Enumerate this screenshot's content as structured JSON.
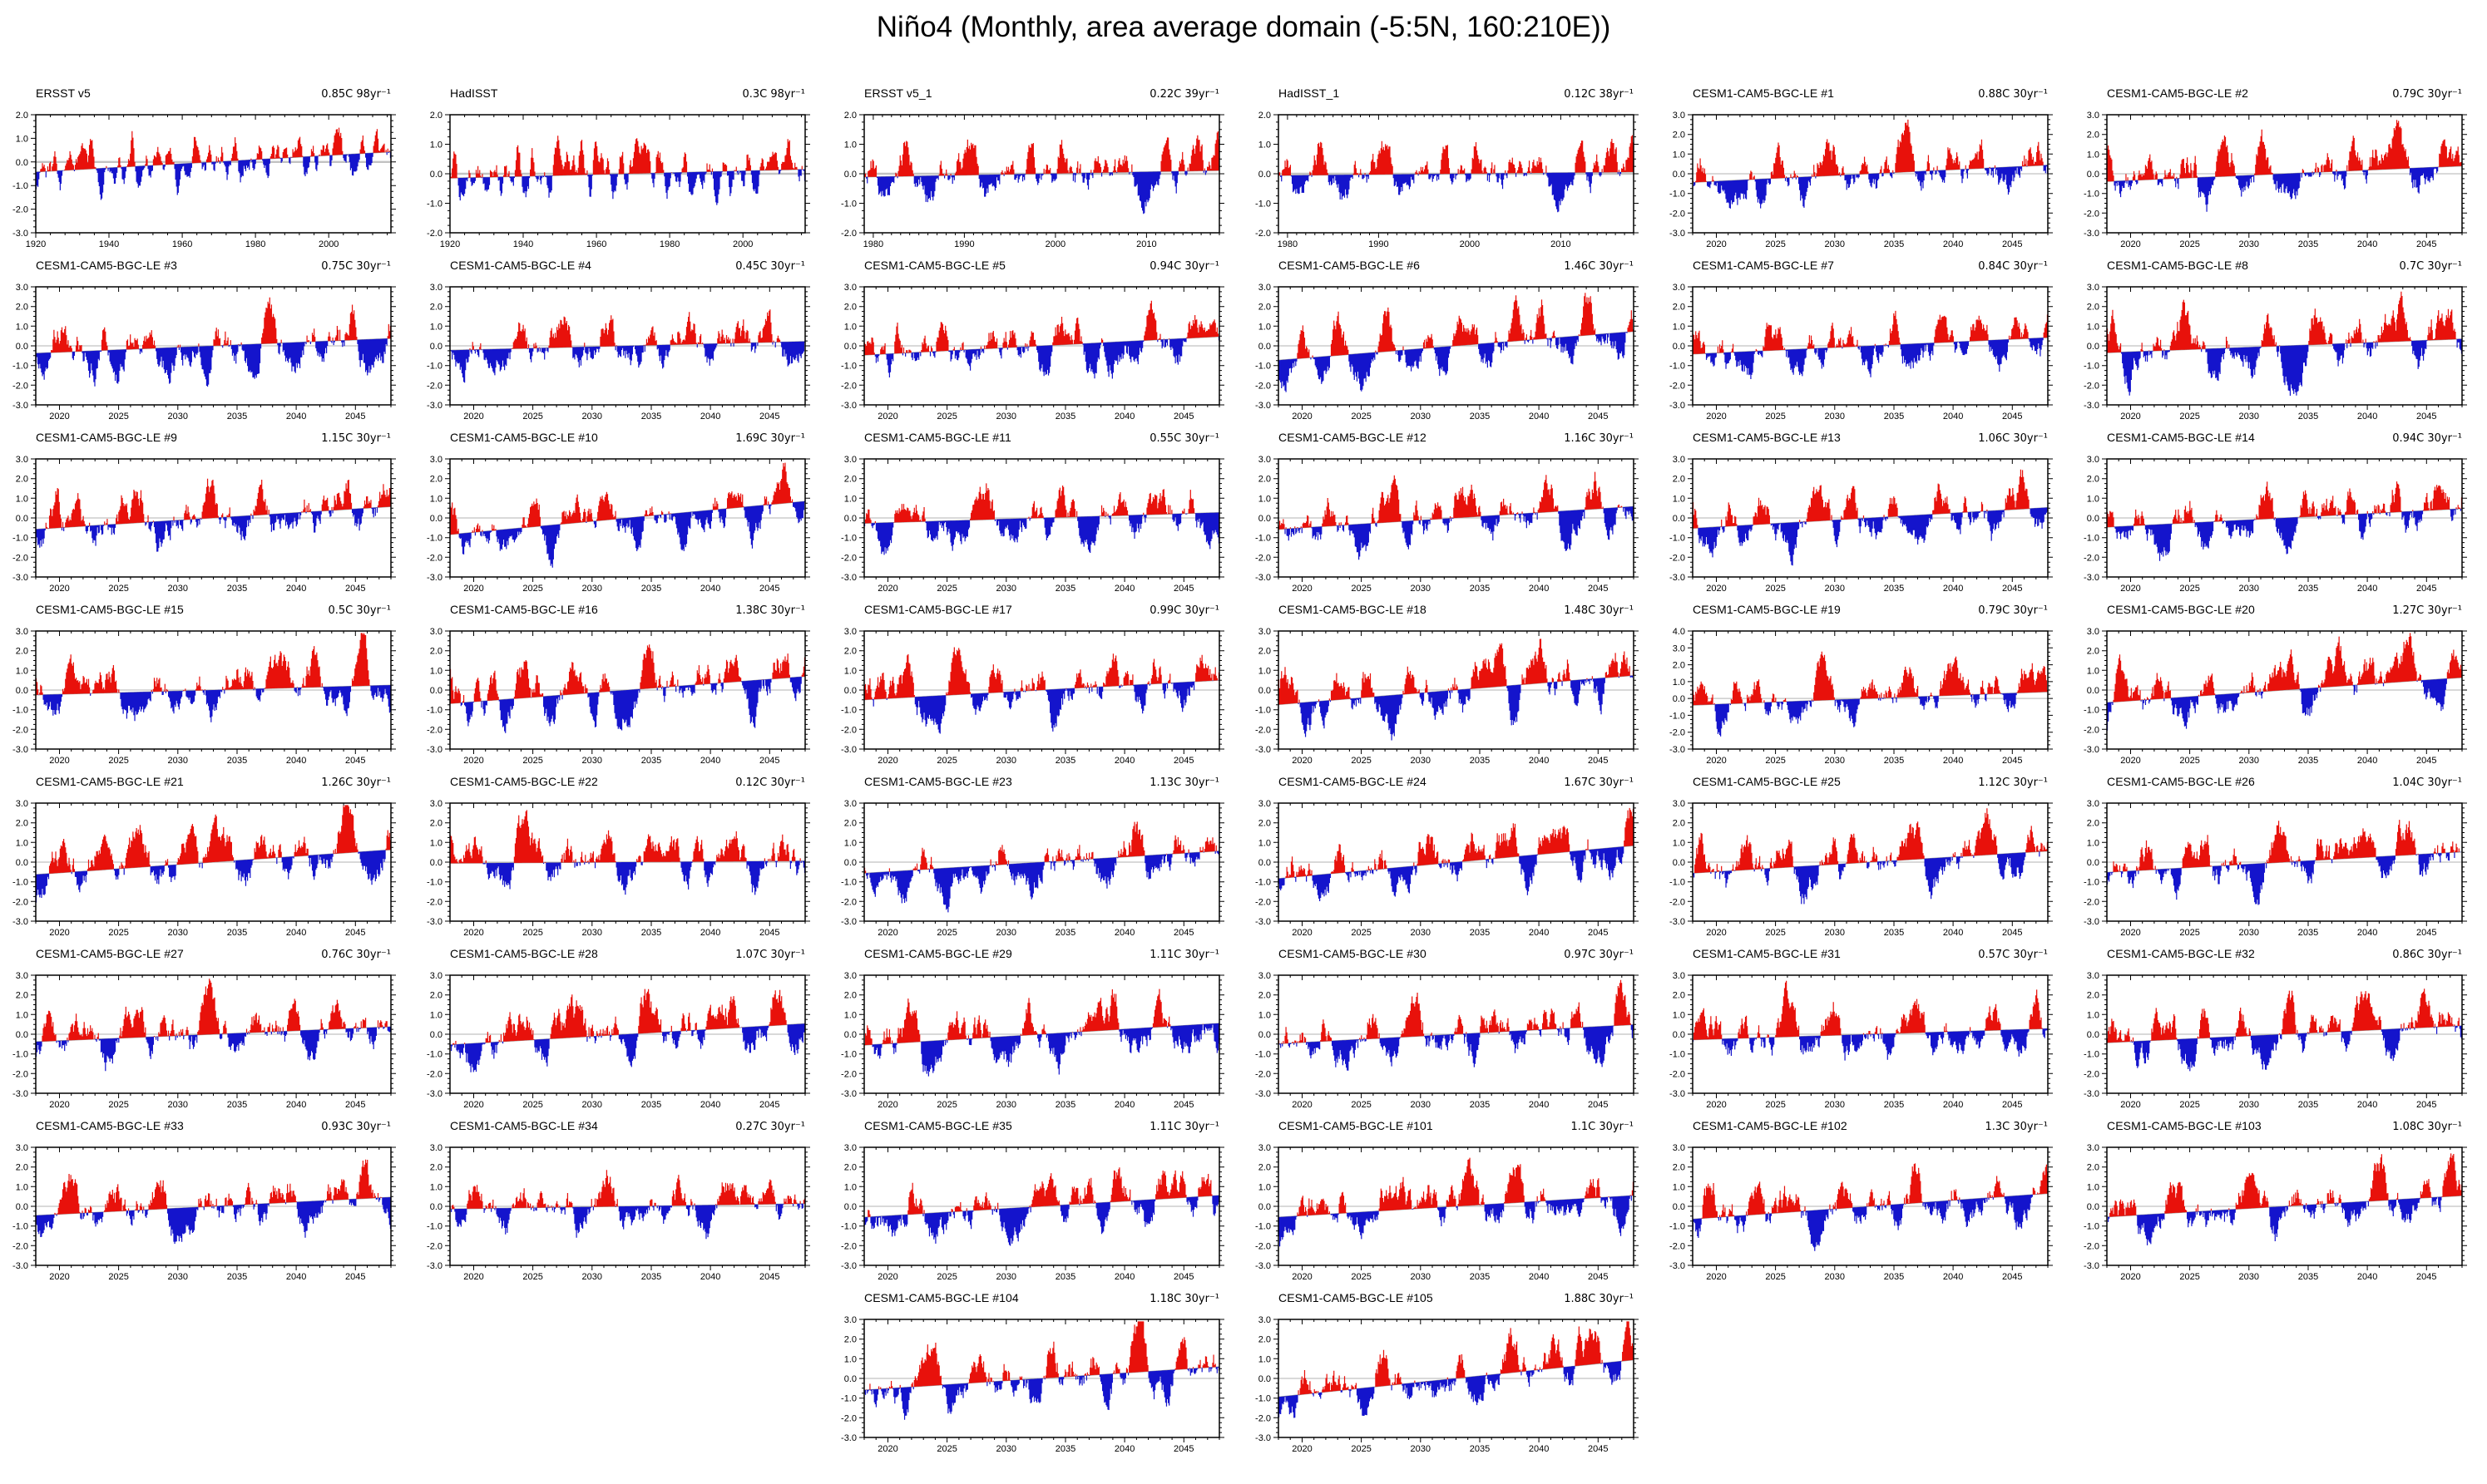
{
  "title": "Niño4 (Monthly, area average domain (-5:5N, 160:210E))",
  "chart_data": {
    "type": "area",
    "description": "44 small-multiple panels of monthly Niño4 SST anomaly time series; anomalies are filled red above the linear trend baseline and blue below it; a thin gray line marks 0.0; each panel header gives the dataset / ensemble member name (left) and its linear trend (right).",
    "colors": {
      "red": "#e8110b",
      "blue": "#1414cc",
      "zero_line": "#c2c2c2",
      "trend_line": "#9a9a9a",
      "axis": "#000000"
    },
    "value_unit": "C",
    "legend": "red = anomaly above trend line, blue = anomaly below trend line",
    "axes": {
      "obs98": {
        "x_start": 1920,
        "x_end": 2017,
        "x_majors": [
          1920,
          1940,
          1960,
          1980,
          2000
        ],
        "x_minor_step": 4
      },
      "obs39": {
        "x_start": 1979,
        "x_end": 2018,
        "x_majors": [
          1980,
          1990,
          2000,
          2010
        ],
        "x_minor_step": 1
      },
      "cesm30": {
        "x_start": 2018,
        "x_end": 2048,
        "x_majors": [
          2020,
          2025,
          2030,
          2035,
          2040,
          2045
        ],
        "x_minor_step": 1
      }
    },
    "y_major_step": 1.0,
    "y_minor_step": 0.25,
    "panels": [
      {
        "title": "ERSST v5",
        "trend_label": "0.85C 98yr⁻¹",
        "trend_c": 0.85,
        "axis": "obs98",
        "ylim": [
          -3,
          2
        ],
        "amp": 0.62,
        "seed": 3
      },
      {
        "title": "HadISST",
        "trend_label": "0.3C 98yr⁻¹",
        "trend_c": 0.3,
        "axis": "obs98",
        "ylim": [
          -2,
          2
        ],
        "amp": 0.55,
        "seed": 5
      },
      {
        "title": "ERSST v5_1",
        "trend_label": "0.22C 39yr⁻¹",
        "trend_c": 0.22,
        "axis": "obs39",
        "ylim": [
          -2,
          2
        ],
        "amp": 0.66,
        "seed": 8
      },
      {
        "title": "HadISST_1",
        "trend_label": "0.12C 38yr⁻¹",
        "trend_c": 0.12,
        "axis": "obs39",
        "ylim": [
          -2,
          2
        ],
        "amp": 0.62,
        "seed": 8
      },
      {
        "title": "CESM1-CAM5-BGC-LE #1",
        "trend_label": "0.88C 30yr⁻¹",
        "trend_c": 0.88,
        "axis": "cesm30",
        "ylim": [
          -3,
          3
        ],
        "amp": 1.0,
        "seed": 11
      },
      {
        "title": "CESM1-CAM5-BGC-LE #2",
        "trend_label": "0.79C 30yr⁻¹",
        "trend_c": 0.79,
        "axis": "cesm30",
        "ylim": [
          -3,
          3
        ],
        "amp": 1.0,
        "seed": 12
      },
      {
        "title": "CESM1-CAM5-BGC-LE #3",
        "trend_label": "0.75C 30yr⁻¹",
        "trend_c": 0.75,
        "axis": "cesm30",
        "ylim": [
          -3,
          3
        ],
        "amp": 1.05,
        "seed": 13
      },
      {
        "title": "CESM1-CAM5-BGC-LE #4",
        "trend_label": "0.45C 30yr⁻¹",
        "trend_c": 0.45,
        "axis": "cesm30",
        "ylim": [
          -3,
          3
        ],
        "amp": 0.95,
        "seed": 14
      },
      {
        "title": "CESM1-CAM5-BGC-LE #5",
        "trend_label": "0.94C 30yr⁻¹",
        "trend_c": 0.94,
        "axis": "cesm30",
        "ylim": [
          -3,
          3
        ],
        "amp": 1.0,
        "seed": 15
      },
      {
        "title": "CESM1-CAM5-BGC-LE #6",
        "trend_label": "1.46C 30yr⁻¹",
        "trend_c": 1.46,
        "axis": "cesm30",
        "ylim": [
          -3,
          3
        ],
        "amp": 1.0,
        "seed": 16
      },
      {
        "title": "CESM1-CAM5-BGC-LE #7",
        "trend_label": "0.84C 30yr⁻¹",
        "trend_c": 0.84,
        "axis": "cesm30",
        "ylim": [
          -3,
          3
        ],
        "amp": 0.95,
        "seed": 17
      },
      {
        "title": "CESM1-CAM5-BGC-LE #8",
        "trend_label": "0.7C 30yr⁻¹",
        "trend_c": 0.7,
        "axis": "cesm30",
        "ylim": [
          -3,
          3
        ],
        "amp": 1.05,
        "seed": 18
      },
      {
        "title": "CESM1-CAM5-BGC-LE #9",
        "trend_label": "1.15C 30yr⁻¹",
        "trend_c": 1.15,
        "axis": "cesm30",
        "ylim": [
          -3,
          3
        ],
        "amp": 1.05,
        "seed": 19
      },
      {
        "title": "CESM1-CAM5-BGC-LE #10",
        "trend_label": "1.69C 30yr⁻¹",
        "trend_c": 1.69,
        "axis": "cesm30",
        "ylim": [
          -3,
          3
        ],
        "amp": 0.95,
        "seed": 20
      },
      {
        "title": "CESM1-CAM5-BGC-LE #11",
        "trend_label": "0.55C 30yr⁻¹",
        "trend_c": 0.55,
        "axis": "cesm30",
        "ylim": [
          -3,
          3
        ],
        "amp": 0.95,
        "seed": 21
      },
      {
        "title": "CESM1-CAM5-BGC-LE #12",
        "trend_label": "1.16C 30yr⁻¹",
        "trend_c": 1.16,
        "axis": "cesm30",
        "ylim": [
          -3,
          3
        ],
        "amp": 1.0,
        "seed": 22
      },
      {
        "title": "CESM1-CAM5-BGC-LE #13",
        "trend_label": "1.06C 30yr⁻¹",
        "trend_c": 1.06,
        "axis": "cesm30",
        "ylim": [
          -3,
          3
        ],
        "amp": 1.0,
        "seed": 23
      },
      {
        "title": "CESM1-CAM5-BGC-LE #14",
        "trend_label": "0.94C 30yr⁻¹",
        "trend_c": 0.94,
        "axis": "cesm30",
        "ylim": [
          -3,
          3
        ],
        "amp": 1.0,
        "seed": 24
      },
      {
        "title": "CESM1-CAM5-BGC-LE #15",
        "trend_label": "0.5C 30yr⁻¹",
        "trend_c": 0.5,
        "axis": "cesm30",
        "ylim": [
          -3,
          3
        ],
        "amp": 0.95,
        "seed": 25
      },
      {
        "title": "CESM1-CAM5-BGC-LE #16",
        "trend_label": "1.38C 30yr⁻¹",
        "trend_c": 1.38,
        "axis": "cesm30",
        "ylim": [
          -3,
          3
        ],
        "amp": 1.05,
        "seed": 26
      },
      {
        "title": "CESM1-CAM5-BGC-LE #17",
        "trend_label": "0.99C 30yr⁻¹",
        "trend_c": 0.99,
        "axis": "cesm30",
        "ylim": [
          -3,
          3
        ],
        "amp": 1.0,
        "seed": 27
      },
      {
        "title": "CESM1-CAM5-BGC-LE #18",
        "trend_label": "1.48C 30yr⁻¹",
        "trend_c": 1.48,
        "axis": "cesm30",
        "ylim": [
          -3,
          3
        ],
        "amp": 1.05,
        "seed": 28
      },
      {
        "title": "CESM1-CAM5-BGC-LE #19",
        "trend_label": "0.79C 30yr⁻¹",
        "trend_c": 0.79,
        "axis": "cesm30",
        "ylim": [
          -3,
          4
        ],
        "amp": 1.0,
        "seed": 29
      },
      {
        "title": "CESM1-CAM5-BGC-LE #20",
        "trend_label": "1.27C 30yr⁻¹",
        "trend_c": 1.27,
        "axis": "cesm30",
        "ylim": [
          -3,
          3
        ],
        "amp": 1.0,
        "seed": 30
      },
      {
        "title": "CESM1-CAM5-BGC-LE #21",
        "trend_label": "1.26C 30yr⁻¹",
        "trend_c": 1.26,
        "axis": "cesm30",
        "ylim": [
          -3,
          3
        ],
        "amp": 1.0,
        "seed": 31
      },
      {
        "title": "CESM1-CAM5-BGC-LE #22",
        "trend_label": "0.12C 30yr⁻¹",
        "trend_c": 0.12,
        "axis": "cesm30",
        "ylim": [
          -3,
          3
        ],
        "amp": 1.0,
        "seed": 32
      },
      {
        "title": "CESM1-CAM5-BGC-LE #23",
        "trend_label": "1.13C 30yr⁻¹",
        "trend_c": 1.13,
        "axis": "cesm30",
        "ylim": [
          -3,
          3
        ],
        "amp": 1.0,
        "seed": 33
      },
      {
        "title": "CESM1-CAM5-BGC-LE #24",
        "trend_label": "1.67C 30yr⁻¹",
        "trend_c": 1.67,
        "axis": "cesm30",
        "ylim": [
          -3,
          3
        ],
        "amp": 1.0,
        "seed": 34
      },
      {
        "title": "CESM1-CAM5-BGC-LE #25",
        "trend_label": "1.12C 30yr⁻¹",
        "trend_c": 1.12,
        "axis": "cesm30",
        "ylim": [
          -3,
          3
        ],
        "amp": 1.0,
        "seed": 35
      },
      {
        "title": "CESM1-CAM5-BGC-LE #26",
        "trend_label": "1.04C 30yr⁻¹",
        "trend_c": 1.04,
        "axis": "cesm30",
        "ylim": [
          -3,
          3
        ],
        "amp": 1.0,
        "seed": 36
      },
      {
        "title": "CESM1-CAM5-BGC-LE #27",
        "trend_label": "0.76C 30yr⁻¹",
        "trend_c": 0.76,
        "axis": "cesm30",
        "ylim": [
          -3,
          3
        ],
        "amp": 0.95,
        "seed": 37
      },
      {
        "title": "CESM1-CAM5-BGC-LE #28",
        "trend_label": "1.07C 30yr⁻¹",
        "trend_c": 1.07,
        "axis": "cesm30",
        "ylim": [
          -3,
          3
        ],
        "amp": 1.05,
        "seed": 38
      },
      {
        "title": "CESM1-CAM5-BGC-LE #29",
        "trend_label": "1.11C 30yr⁻¹",
        "trend_c": 1.11,
        "axis": "cesm30",
        "ylim": [
          -3,
          3
        ],
        "amp": 1.0,
        "seed": 39
      },
      {
        "title": "CESM1-CAM5-BGC-LE #30",
        "trend_label": "0.97C 30yr⁻¹",
        "trend_c": 0.97,
        "axis": "cesm30",
        "ylim": [
          -3,
          3
        ],
        "amp": 0.95,
        "seed": 40
      },
      {
        "title": "CESM1-CAM5-BGC-LE #31",
        "trend_label": "0.57C 30yr⁻¹",
        "trend_c": 0.57,
        "axis": "cesm30",
        "ylim": [
          -3,
          3
        ],
        "amp": 1.0,
        "seed": 41
      },
      {
        "title": "CESM1-CAM5-BGC-LE #32",
        "trend_label": "0.86C 30yr⁻¹",
        "trend_c": 0.86,
        "axis": "cesm30",
        "ylim": [
          -3,
          3
        ],
        "amp": 1.0,
        "seed": 42
      },
      {
        "title": "CESM1-CAM5-BGC-LE #33",
        "trend_label": "0.93C 30yr⁻¹",
        "trend_c": 0.93,
        "axis": "cesm30",
        "ylim": [
          -3,
          3
        ],
        "amp": 1.0,
        "seed": 43
      },
      {
        "title": "CESM1-CAM5-BGC-LE #34",
        "trend_label": "0.27C 30yr⁻¹",
        "trend_c": 0.27,
        "axis": "cesm30",
        "ylim": [
          -3,
          3
        ],
        "amp": 0.9,
        "seed": 44
      },
      {
        "title": "CESM1-CAM5-BGC-LE #35",
        "trend_label": "1.11C 30yr⁻¹",
        "trend_c": 1.11,
        "axis": "cesm30",
        "ylim": [
          -3,
          3
        ],
        "amp": 1.05,
        "seed": 45
      },
      {
        "title": "CESM1-CAM5-BGC-LE #101",
        "trend_label": "1.1C 30yr⁻¹",
        "trend_c": 1.1,
        "axis": "cesm30",
        "ylim": [
          -3,
          3
        ],
        "amp": 1.0,
        "seed": 46
      },
      {
        "title": "CESM1-CAM5-BGC-LE #102",
        "trend_label": "1.3C 30yr⁻¹",
        "trend_c": 1.3,
        "axis": "cesm30",
        "ylim": [
          -3,
          3
        ],
        "amp": 1.0,
        "seed": 47
      },
      {
        "title": "CESM1-CAM5-BGC-LE #103",
        "trend_label": "1.08C 30yr⁻¹",
        "trend_c": 1.08,
        "axis": "cesm30",
        "ylim": [
          -3,
          3
        ],
        "amp": 1.0,
        "seed": 48
      },
      {
        "title": "CESM1-CAM5-BGC-LE #104",
        "trend_label": "1.18C 30yr⁻¹",
        "trend_c": 1.18,
        "axis": "cesm30",
        "ylim": [
          -3,
          3
        ],
        "amp": 1.0,
        "seed": 49,
        "col": 3
      },
      {
        "title": "CESM1-CAM5-BGC-LE #105",
        "trend_label": "1.88C 30yr⁻¹",
        "trend_c": 1.88,
        "axis": "cesm30",
        "ylim": [
          -3,
          3
        ],
        "amp": 1.0,
        "seed": 50,
        "col": 4
      }
    ]
  }
}
